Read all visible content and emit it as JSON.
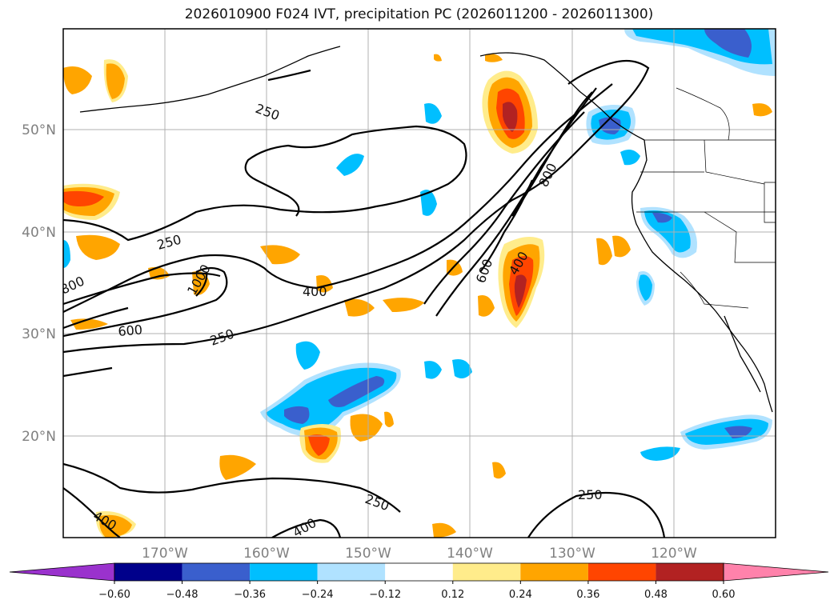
{
  "title": "2026010900 F024 IVT, precipitation PC (2026011200 - 2026011300)",
  "map": {
    "lat_labels": [
      "50°N",
      "40°N",
      "30°N",
      "20°N"
    ],
    "lon_labels": [
      "170°W",
      "160°W",
      "150°W",
      "140°W",
      "130°W",
      "120°W"
    ],
    "contour_labels": {
      "c250_a": "250",
      "c250_b": "250",
      "c250_c": "250",
      "c250_d": "250",
      "c250_e": "250",
      "c400_a": "400",
      "c400_b": "400",
      "c400_c": "400",
      "c400_d": "400",
      "c600_a": "600",
      "c600_b": "600",
      "c800_a": "800",
      "c800_b": "800",
      "c1000": "1000"
    }
  },
  "colorbar": {
    "ticks": [
      "−0.60",
      "−0.48",
      "−0.36",
      "−0.24",
      "−0.12",
      "0.12",
      "0.24",
      "0.36",
      "0.48",
      "0.60"
    ],
    "colors": [
      "#9a32cd",
      "#00008b",
      "#3a5fcd",
      "#00bfff",
      "#b0e2ff",
      "#ffffff",
      "#ffec8b",
      "#ffa500",
      "#ff4500",
      "#b22222",
      "#ff82ab"
    ]
  }
}
